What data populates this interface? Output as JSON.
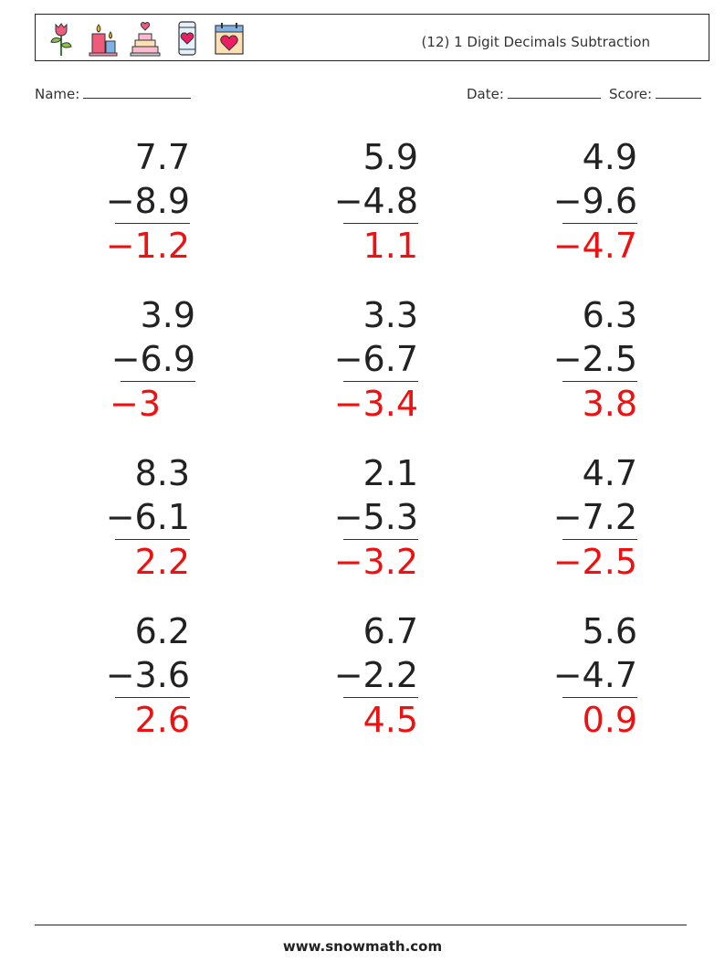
{
  "header": {
    "icons": [
      "rose-icon",
      "candles-icon",
      "cake-icon",
      "phone-heart-icon",
      "calendar-heart-icon"
    ],
    "title": "(12) 1 Digit Decimals Subtraction"
  },
  "meta": {
    "name_label": "Name:",
    "date_label": "Date:",
    "score_label": "Score:"
  },
  "problems": [
    {
      "top": "7.7",
      "bottom": "−8.9",
      "answer": "−1.2"
    },
    {
      "top": "5.9",
      "bottom": "−4.8",
      "answer": "1.1"
    },
    {
      "top": "4.9",
      "bottom": "−9.6",
      "answer": "−4.7"
    },
    {
      "top": "3.9",
      "bottom": "−6.9",
      "answer": "−3"
    },
    {
      "top": "3.3",
      "bottom": "−6.7",
      "answer": "−3.4"
    },
    {
      "top": "6.3",
      "bottom": "−2.5",
      "answer": "3.8"
    },
    {
      "top": "8.3",
      "bottom": "−6.1",
      "answer": "2.2"
    },
    {
      "top": "2.1",
      "bottom": "−5.3",
      "answer": "−3.2"
    },
    {
      "top": "4.7",
      "bottom": "−7.2",
      "answer": "−2.5"
    },
    {
      "top": "6.2",
      "bottom": "−3.6",
      "answer": "2.6"
    },
    {
      "top": "6.7",
      "bottom": "−2.2",
      "answer": "4.5"
    },
    {
      "top": "5.6",
      "bottom": "−4.7",
      "answer": "0.9"
    }
  ],
  "footer": {
    "site": "www.snowmath.com"
  },
  "colors": {
    "answer": "#ee1111",
    "text": "#222222"
  }
}
